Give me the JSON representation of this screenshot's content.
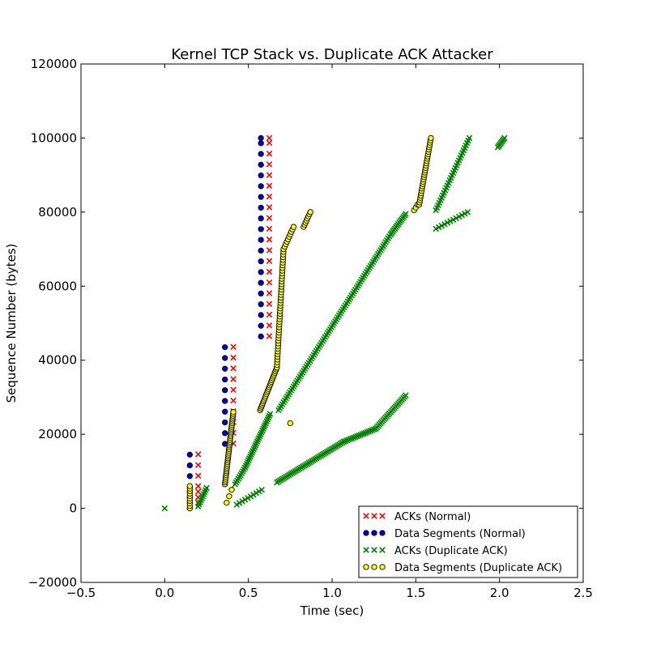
{
  "chart_data": {
    "type": "scatter",
    "title": "Kernel TCP Stack vs. Duplicate ACK Attacker",
    "xlabel": "Time (sec)",
    "ylabel": "Sequence Number (bytes)",
    "xlim": [
      -0.5,
      2.5
    ],
    "ylim": [
      -20000,
      120000
    ],
    "xticks": [
      -0.5,
      0.0,
      0.5,
      1.0,
      1.5,
      2.0,
      2.5
    ],
    "xtick_labels": [
      "−0.5",
      "0.0",
      "0.5",
      "1.0",
      "1.5",
      "2.0",
      "2.5"
    ],
    "yticks": [
      -20000,
      0,
      20000,
      40000,
      60000,
      80000,
      100000,
      120000
    ],
    "ytick_labels": [
      "−20000",
      "0",
      "20000",
      "40000",
      "60000",
      "80000",
      "100000",
      "120000"
    ],
    "grid": false,
    "legend_position": "lower-right",
    "series": [
      {
        "name": "ACKs (Normal)",
        "marker": "x",
        "color": "#ff0000",
        "points": [
          [
            0.2,
            1500
          ],
          [
            0.2,
            3000
          ],
          [
            0.2,
            4500
          ],
          [
            0.2,
            6000
          ],
          [
            0.2,
            8800
          ],
          [
            0.2,
            11700
          ],
          [
            0.2,
            14600
          ],
          [
            0.41,
            17500
          ],
          [
            0.41,
            20400
          ],
          [
            0.41,
            23300
          ],
          [
            0.41,
            26200
          ],
          [
            0.41,
            29100
          ],
          [
            0.41,
            32000
          ],
          [
            0.41,
            34900
          ],
          [
            0.41,
            37800
          ],
          [
            0.41,
            40700
          ],
          [
            0.41,
            43600
          ],
          [
            0.625,
            46500
          ],
          [
            0.625,
            49400
          ],
          [
            0.625,
            52300
          ],
          [
            0.625,
            55200
          ],
          [
            0.625,
            58100
          ],
          [
            0.625,
            61000
          ],
          [
            0.625,
            63900
          ],
          [
            0.625,
            66800
          ],
          [
            0.625,
            69700
          ],
          [
            0.625,
            72600
          ],
          [
            0.625,
            75500
          ],
          [
            0.625,
            78400
          ],
          [
            0.625,
            81300
          ],
          [
            0.625,
            84200
          ],
          [
            0.625,
            87100
          ],
          [
            0.625,
            90000
          ],
          [
            0.625,
            92900
          ],
          [
            0.625,
            95800
          ],
          [
            0.625,
            98700
          ],
          [
            0.625,
            100000
          ]
        ]
      },
      {
        "name": "Data Segments (Normal)",
        "marker": "o",
        "color": "#0000cc",
        "points": [
          [
            0.15,
            0
          ],
          [
            0.15,
            1500
          ],
          [
            0.15,
            3000
          ],
          [
            0.15,
            4500
          ],
          [
            0.15,
            5800
          ],
          [
            0.15,
            8700
          ],
          [
            0.15,
            11600
          ],
          [
            0.15,
            14500
          ],
          [
            0.36,
            17400
          ],
          [
            0.36,
            20300
          ],
          [
            0.36,
            23200
          ],
          [
            0.36,
            26100
          ],
          [
            0.36,
            29000
          ],
          [
            0.36,
            31900
          ],
          [
            0.36,
            34800
          ],
          [
            0.36,
            37700
          ],
          [
            0.36,
            40600
          ],
          [
            0.36,
            43500
          ],
          [
            0.575,
            46400
          ],
          [
            0.575,
            49300
          ],
          [
            0.575,
            52200
          ],
          [
            0.575,
            55100
          ],
          [
            0.575,
            58000
          ],
          [
            0.575,
            60900
          ],
          [
            0.575,
            63800
          ],
          [
            0.575,
            66700
          ],
          [
            0.575,
            69600
          ],
          [
            0.575,
            72500
          ],
          [
            0.575,
            75400
          ],
          [
            0.575,
            78300
          ],
          [
            0.575,
            81200
          ],
          [
            0.575,
            84100
          ],
          [
            0.575,
            87000
          ],
          [
            0.575,
            89900
          ],
          [
            0.575,
            92800
          ],
          [
            0.575,
            95700
          ],
          [
            0.575,
            98600
          ],
          [
            0.575,
            100000
          ]
        ]
      },
      {
        "name": "ACKs (Duplicate ACK)",
        "marker": "x",
        "color": "#008000",
        "segments": [
          {
            "x": [
              0.0,
              0.0
            ],
            "y": [
              0,
              0
            ],
            "n": 1
          },
          {
            "x": [
              0.2,
              0.25
            ],
            "y": [
              500,
              5500
            ],
            "n": 10
          },
          {
            "x": [
              0.42,
              0.48
            ],
            "y": [
              6500,
              11000
            ],
            "n": 10
          },
          {
            "x": [
              0.48,
              0.63
            ],
            "y": [
              11000,
              25500
            ],
            "n": 30
          },
          {
            "x": [
              0.43,
              0.58
            ],
            "y": [
              1000,
              5000
            ],
            "n": 10
          },
          {
            "x": [
              0.67,
              1.07
            ],
            "y": [
              7000,
              18000
            ],
            "n": 45
          },
          {
            "x": [
              1.07,
              1.26
            ],
            "y": [
              18000,
              21500
            ],
            "n": 20
          },
          {
            "x": [
              1.26,
              1.44
            ],
            "y": [
              21500,
              30500
            ],
            "n": 25
          },
          {
            "x": [
              0.68,
              1.35
            ],
            "y": [
              26500,
              74000
            ],
            "n": 90
          },
          {
            "x": [
              1.35,
              1.44
            ],
            "y": [
              74000,
              79500
            ],
            "n": 15
          },
          {
            "x": [
              1.62,
              1.82
            ],
            "y": [
              80500,
              100000
            ],
            "n": 30
          },
          {
            "x": [
              1.62,
              1.81
            ],
            "y": [
              75500,
              80000
            ],
            "n": 12
          },
          {
            "x": [
              1.99,
              2.03
            ],
            "y": [
              97500,
              100000
            ],
            "n": 8
          }
        ]
      },
      {
        "name": "Data Segments (Duplicate ACK)",
        "marker": "o",
        "color": "#ffff00",
        "segments": [
          {
            "x": [
              0.15,
              0.15
            ],
            "y": [
              0,
              6000
            ],
            "n": 10
          },
          {
            "x": [
              0.37,
              0.4
            ],
            "y": [
              1500,
              5000
            ],
            "n": 3
          },
          {
            "x": [
              0.36,
              0.41
            ],
            "y": [
              6500,
              26000
            ],
            "n": 40
          },
          {
            "x": [
              0.57,
              0.67
            ],
            "y": [
              26500,
              38000
            ],
            "n": 25
          },
          {
            "x": [
              0.67,
              0.71
            ],
            "y": [
              38000,
              70000
            ],
            "n": 45
          },
          {
            "x": [
              0.71,
              0.77
            ],
            "y": [
              70000,
              76000
            ],
            "n": 10
          },
          {
            "x": [
              0.83,
              0.87
            ],
            "y": [
              76000,
              80000
            ],
            "n": 8
          },
          {
            "x": [
              0.75,
              0.75
            ],
            "y": [
              23000,
              23000
            ],
            "n": 1
          },
          {
            "x": [
              1.49,
              1.51
            ],
            "y": [
              80500,
              82000
            ],
            "n": 3
          },
          {
            "x": [
              1.52,
              1.59
            ],
            "y": [
              82000,
              100000
            ],
            "n": 30
          }
        ]
      }
    ]
  }
}
